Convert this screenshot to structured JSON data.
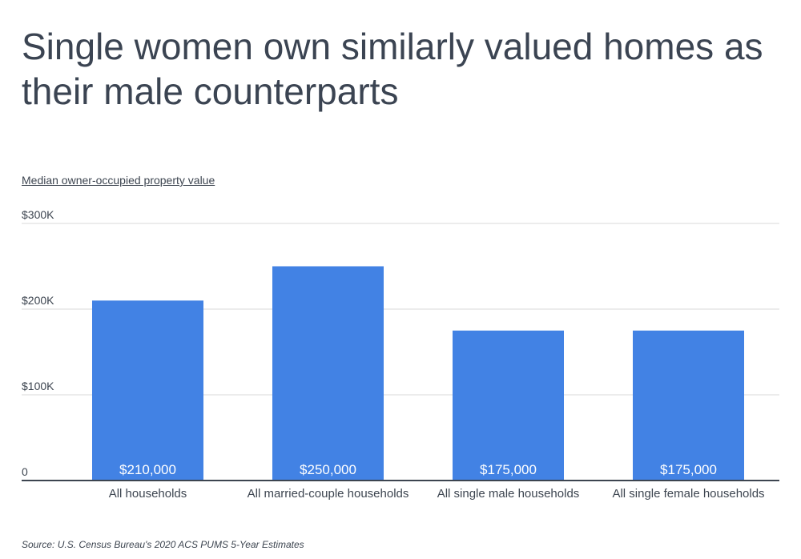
{
  "title": "Single women own similarly valued homes as their male counterparts",
  "source": "Source:  U.S. Census Bureau's 2020 ACS PUMS 5-Year Estimates",
  "colors": {
    "bar": "#4282e4",
    "grid": "#d9d9d9",
    "axis": "#3d4550",
    "text": "#3d4550"
  },
  "chart_data": {
    "type": "bar",
    "title": "Single women own similarly valued homes as their male counterparts",
    "ylabel": "Median owner-occupied property value",
    "xlabel": "",
    "categories": [
      "All households",
      "All married-couple households",
      "All single male households",
      "All single female households"
    ],
    "values": [
      210000,
      250000,
      175000,
      175000
    ],
    "data_labels": [
      "$210,000",
      "$250,000",
      "$175,000",
      "$175,000"
    ],
    "ylim": [
      0,
      300000
    ],
    "yticks": [
      0,
      100000,
      200000,
      300000
    ],
    "ytick_labels": [
      "0",
      "$100K",
      "$200K",
      "$300K"
    ],
    "grid": true,
    "legend": "none"
  }
}
